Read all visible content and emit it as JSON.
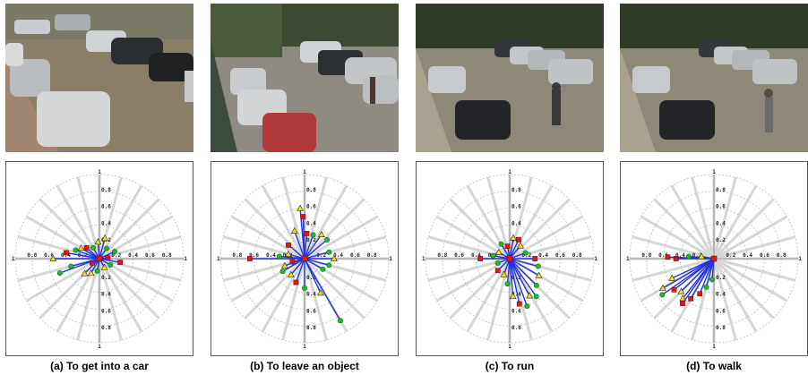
{
  "figure": {
    "panels": [
      {
        "id": "a",
        "caption": "(a) To get into a car",
        "photo_icon": "parking-lot-scene-cars-person-getting-in",
        "polar": {
          "ring_labels": [
            "0.2",
            "0.4",
            "0.6",
            "0.8",
            "1"
          ],
          "axis_end_labels": [
            "1",
            "1",
            "1",
            "1"
          ],
          "vectors": [
            {
              "angle": 180,
              "r": 0.55,
              "m": "tri"
            },
            {
              "angle": 170,
              "r": 0.4,
              "m": "sq"
            },
            {
              "angle": 160,
              "r": 0.3,
              "m": "circ"
            },
            {
              "angle": 150,
              "r": 0.25,
              "m": "tri"
            },
            {
              "angle": 140,
              "r": 0.2,
              "m": "sq"
            },
            {
              "angle": 120,
              "r": 0.15,
              "m": "circ"
            },
            {
              "angle": 95,
              "r": 0.2,
              "m": "tri"
            },
            {
              "angle": 75,
              "r": 0.25,
              "m": "tri"
            },
            {
              "angle": 55,
              "r": 0.15,
              "m": "circ"
            },
            {
              "angle": 25,
              "r": 0.2,
              "m": "circ"
            },
            {
              "angle": 5,
              "r": 0.1,
              "m": "sq"
            },
            {
              "angle": -10,
              "r": 0.25,
              "m": "sq"
            },
            {
              "angle": -30,
              "r": 0.15,
              "m": "circ"
            },
            {
              "angle": -60,
              "r": 0.12,
              "m": "tri"
            },
            {
              "angle": -100,
              "r": 0.15,
              "m": "circ"
            },
            {
              "angle": -120,
              "r": 0.2,
              "m": "tri"
            },
            {
              "angle": -135,
              "r": 0.25,
              "m": "tri"
            },
            {
              "angle": -150,
              "r": 0.1,
              "m": "sq"
            },
            {
              "angle": 195,
              "r": 0.35,
              "m": "circ"
            },
            {
              "angle": 200,
              "r": 0.5,
              "m": "circ"
            }
          ]
        }
      },
      {
        "id": "b",
        "caption": "(b) To leave an object",
        "photo_icon": "parking-lot-scene-person-at-car-door",
        "polar": {
          "ring_labels": [
            "0.2",
            "0.4",
            "0.6",
            "0.8",
            "1"
          ],
          "axis_end_labels": [
            "1",
            "1",
            "1",
            "1"
          ],
          "vectors": [
            {
              "angle": 180,
              "r": 0.65,
              "m": "sq"
            },
            {
              "angle": 175,
              "r": 0.3,
              "m": "circ"
            },
            {
              "angle": 165,
              "r": 0.2,
              "m": "tri"
            },
            {
              "angle": 140,
              "r": 0.25,
              "m": "sq"
            },
            {
              "angle": 110,
              "r": 0.35,
              "m": "tri"
            },
            {
              "angle": 95,
              "r": 0.6,
              "m": "tri"
            },
            {
              "angle": 92,
              "r": 0.5,
              "m": "sq"
            },
            {
              "angle": 85,
              "r": 0.3,
              "m": "sq"
            },
            {
              "angle": 70,
              "r": 0.3,
              "m": "circ"
            },
            {
              "angle": 55,
              "r": 0.35,
              "m": "tri"
            },
            {
              "angle": 40,
              "r": 0.35,
              "m": "circ"
            },
            {
              "angle": 15,
              "r": 0.3,
              "m": "circ"
            },
            {
              "angle": 0,
              "r": 0.35,
              "m": "tri"
            },
            {
              "angle": -15,
              "r": 0.3,
              "m": "circ"
            },
            {
              "angle": -30,
              "r": 0.25,
              "m": "circ"
            },
            {
              "angle": -65,
              "r": 0.45,
              "m": "tri"
            },
            {
              "angle": -60,
              "r": 0.85,
              "m": "circ"
            },
            {
              "angle": -90,
              "r": 0.35,
              "m": "circ"
            },
            {
              "angle": -110,
              "r": 0.3,
              "m": "sq"
            },
            {
              "angle": -130,
              "r": 0.25,
              "m": "tri"
            },
            {
              "angle": -150,
              "r": 0.3,
              "m": "circ"
            },
            {
              "angle": -165,
              "r": 0.15,
              "m": "sq"
            },
            {
              "angle": 200,
              "r": 0.25,
              "m": "tri"
            }
          ]
        }
      },
      {
        "id": "c",
        "caption": "(c) To run",
        "photo_icon": "parking-lot-scene-person-running",
        "polar": {
          "ring_labels": [
            "0.2",
            "0.4",
            "0.6",
            "0.8",
            "1"
          ],
          "axis_end_labels": [
            "1",
            "1",
            "1",
            "1"
          ],
          "vectors": [
            {
              "angle": 180,
              "r": 0.35,
              "m": "sq"
            },
            {
              "angle": 170,
              "r": 0.2,
              "m": "circ"
            },
            {
              "angle": 150,
              "r": 0.15,
              "m": "tri"
            },
            {
              "angle": 120,
              "r": 0.2,
              "m": "circ"
            },
            {
              "angle": 100,
              "r": 0.15,
              "m": "sq"
            },
            {
              "angle": 80,
              "r": 0.25,
              "m": "tri"
            },
            {
              "angle": 65,
              "r": 0.25,
              "m": "sq"
            },
            {
              "angle": 50,
              "r": 0.2,
              "m": "tri"
            },
            {
              "angle": 20,
              "r": 0.2,
              "m": "circ"
            },
            {
              "angle": 0,
              "r": 0.3,
              "m": "sq"
            },
            {
              "angle": -15,
              "r": 0.35,
              "m": "circ"
            },
            {
              "angle": -30,
              "r": 0.4,
              "m": "tri"
            },
            {
              "angle": -45,
              "r": 0.45,
              "m": "circ"
            },
            {
              "angle": -55,
              "r": 0.55,
              "m": "circ"
            },
            {
              "angle": -62,
              "r": 0.5,
              "m": "tri"
            },
            {
              "angle": -70,
              "r": 0.6,
              "m": "circ"
            },
            {
              "angle": -78,
              "r": 0.55,
              "m": "sq"
            },
            {
              "angle": -85,
              "r": 0.45,
              "m": "tri"
            },
            {
              "angle": -95,
              "r": 0.3,
              "m": "circ"
            },
            {
              "angle": -110,
              "r": 0.2,
              "m": "tri"
            },
            {
              "angle": -135,
              "r": 0.2,
              "m": "sq"
            },
            {
              "angle": -160,
              "r": 0.15,
              "m": "circ"
            }
          ]
        }
      },
      {
        "id": "d",
        "caption": "(d) To walk",
        "photo_icon": "parking-lot-scene-person-walking",
        "polar": {
          "ring_labels": [
            "0.2",
            "0.4",
            "0.6",
            "0.8",
            "1"
          ],
          "axis_end_labels": [
            "1",
            "1",
            "1",
            "1"
          ],
          "vectors": [
            {
              "angle": 180,
              "r": 0.45,
              "m": "sq"
            },
            {
              "angle": 178,
              "r": 0.55,
              "m": "sq"
            },
            {
              "angle": 175,
              "r": 0.3,
              "m": "circ"
            },
            {
              "angle": 170,
              "r": 0.15,
              "m": "tri"
            },
            {
              "angle": 205,
              "r": 0.55,
              "m": "tri"
            },
            {
              "angle": 210,
              "r": 0.7,
              "m": "tri"
            },
            {
              "angle": 215,
              "r": 0.75,
              "m": "circ"
            },
            {
              "angle": 218,
              "r": 0.6,
              "m": "sq"
            },
            {
              "angle": 225,
              "r": 0.55,
              "m": "tri"
            },
            {
              "angle": 232,
              "r": 0.6,
              "m": "tri"
            },
            {
              "angle": 235,
              "r": 0.65,
              "m": "sq"
            },
            {
              "angle": 240,
              "r": 0.55,
              "m": "sq"
            },
            {
              "angle": 248,
              "r": 0.45,
              "m": "sq"
            },
            {
              "angle": 255,
              "r": 0.35,
              "m": "circ"
            },
            {
              "angle": 265,
              "r": 0.25,
              "m": "circ"
            }
          ]
        }
      }
    ],
    "colors": {
      "vector": "#2233dd",
      "square": "#dd1a1a",
      "triangle": "#f2e019",
      "circle": "#22bb22",
      "grid": "#bdbdbd",
      "spoke": "#d6d6d6"
    }
  }
}
